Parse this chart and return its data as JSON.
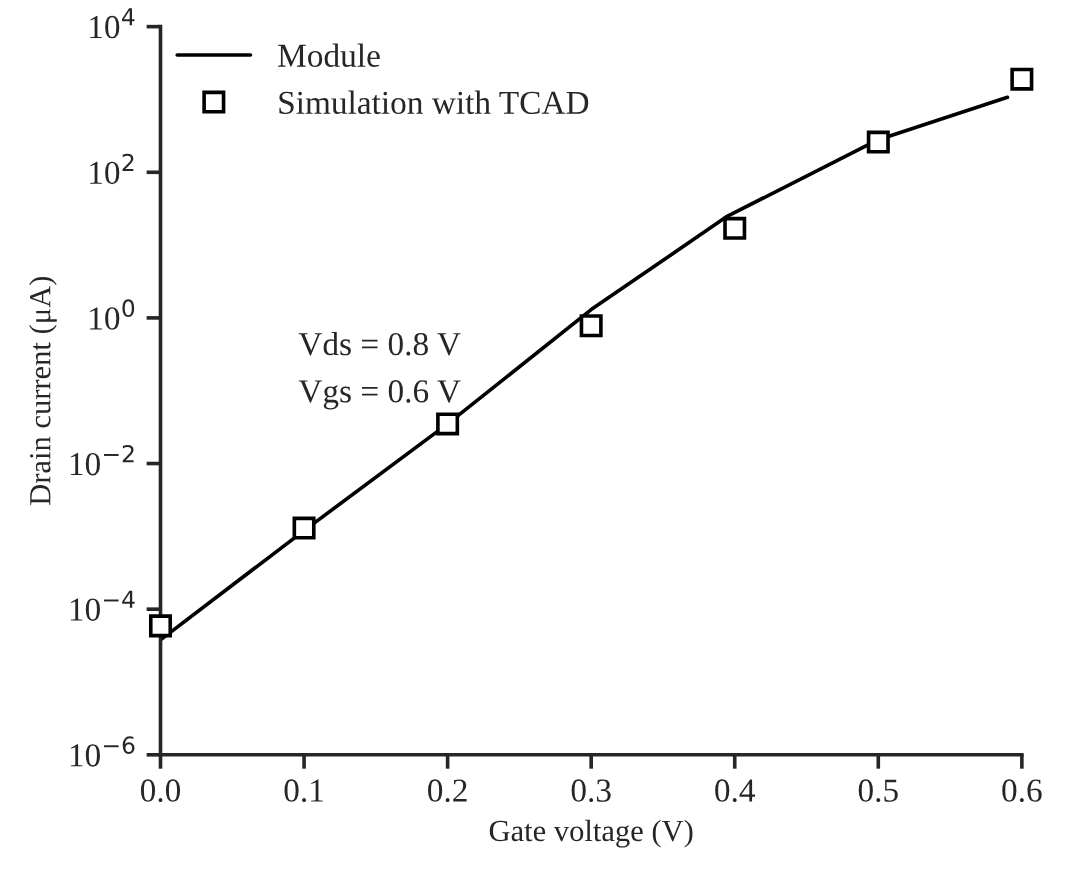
{
  "chart_data": {
    "type": "line",
    "xlabel": "Gate voltage (V)",
    "ylabel": "Drain current (μA)",
    "log": "y",
    "xlim": [
      0,
      0.6
    ],
    "xticks": [
      {
        "value": 0,
        "label": "0.0"
      },
      {
        "value": 0.1,
        "label": "0.1"
      },
      {
        "value": 0.2,
        "label": "0.2"
      },
      {
        "value": 0.3,
        "label": "0.3"
      },
      {
        "value": 0.4,
        "label": "0.4"
      },
      {
        "value": 0.5,
        "label": "0.5"
      },
      {
        "value": 0.6,
        "label": "0.6"
      }
    ],
    "ylim": [
      1e-06,
      10000
    ],
    "yticks": [
      {
        "value": 1e-06,
        "label": "10$^{−6}$"
      },
      {
        "value": 0.0001,
        "label": "10$^{−4}$"
      },
      {
        "value": 0.01,
        "label": "10$^{−2}$"
      },
      {
        "value": 1,
        "label": "10$^{0}$"
      },
      {
        "value": 100,
        "label": "10$^{2}$"
      },
      {
        "value": 10000,
        "label": "10$^{4}$"
      }
    ],
    "series": [
      {
        "name": "Module",
        "color": "#000000",
        "marker": "none",
        "line_style": "solid",
        "x": [
          0,
          0.1,
          0.2,
          0.3,
          0.395,
          0.5,
          0.59
        ],
        "values": [
          3.8e-05,
          0.0012,
          0.035,
          1.3,
          25,
          280,
          1070
        ]
      },
      {
        "name": "Simulation with TCAD",
        "type": "scatter",
        "color": "#000000",
        "marker": "square",
        "x": [
          0,
          0.1,
          0.2,
          0.3,
          0.4,
          0.5,
          0.6
        ],
        "values": [
          5.9e-05,
          0.0013,
          0.035,
          0.78,
          17,
          260,
          1900
        ]
      }
    ],
    "annotations": [
      "Vds = 0.8 V",
      "Vgs = 0.6 V"
    ],
    "legend": "top left",
    "grid": false
  }
}
